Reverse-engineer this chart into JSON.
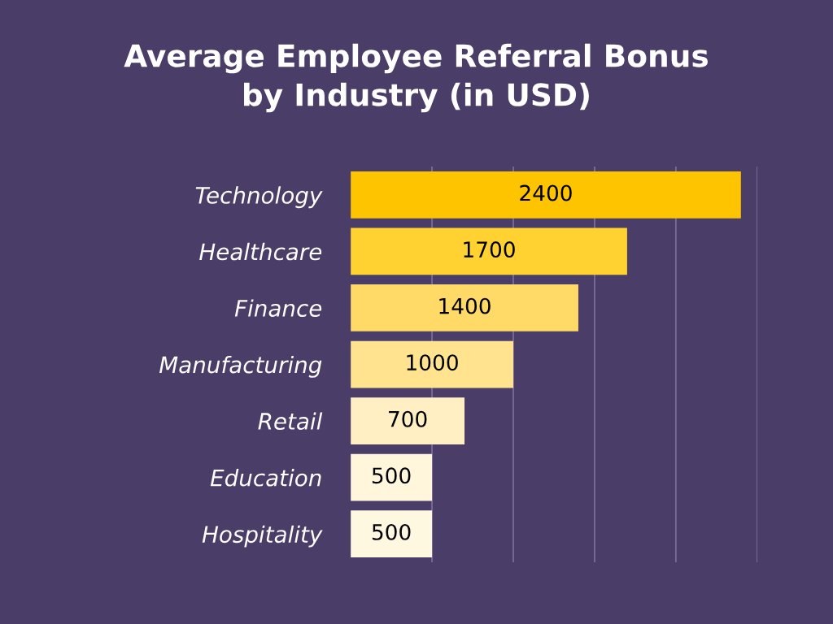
{
  "chart_data": {
    "type": "bar",
    "orientation": "horizontal",
    "title": "Average Employee Referral Bonus\nby Industry (in USD)",
    "categories": [
      "Technology",
      "Healthcare",
      "Finance",
      "Manufacturing",
      "Retail",
      "Education",
      "Hospitality"
    ],
    "values": [
      2400,
      1700,
      1400,
      1000,
      700,
      500,
      500
    ],
    "colors": [
      "#ffc400",
      "#ffd232",
      "#ffda66",
      "#ffe38f",
      "#ffefc2",
      "#fff6dc",
      "#fff8e0"
    ],
    "data_labels": true,
    "xlim": [
      0,
      2500
    ],
    "xticks": [
      {
        "value": 500,
        "label": null
      },
      {
        "value": 1000,
        "label": null
      },
      {
        "value": 1500,
        "label": null
      },
      {
        "value": 2000,
        "label": null
      },
      {
        "value": 2500,
        "label": null
      }
    ],
    "grid": "x",
    "tick_labels": "y"
  }
}
